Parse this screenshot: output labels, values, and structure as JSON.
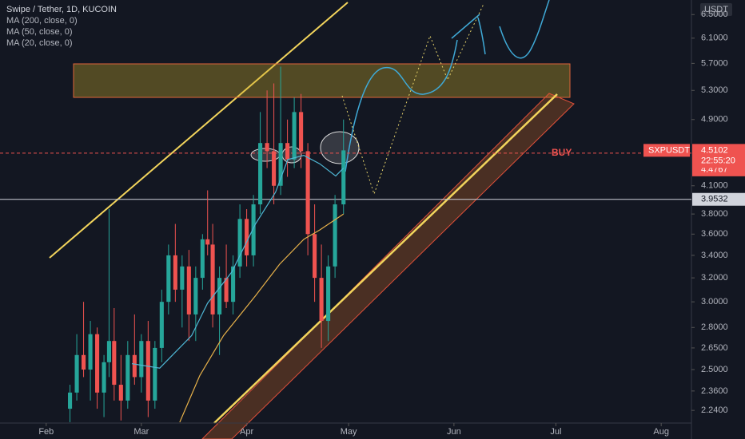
{
  "header": {
    "symbol": "Swipe / Tether, 1D, KUCOIN",
    "indicators": [
      "MA (200, close, 0)",
      "MA (50, close, 0)",
      "MA (20, close, 0)"
    ]
  },
  "chart_data": {
    "type": "candlestick",
    "currency": "USDT",
    "log_scale": true,
    "up_color": "#26a69a",
    "down_color": "#ef5350",
    "xlim": [
      18.4,
      221.9
    ],
    "xticks": [
      {
        "value": 32,
        "label": "Feb"
      },
      {
        "value": 60,
        "label": "Mar"
      },
      {
        "value": 91,
        "label": "Apr"
      },
      {
        "value": 121,
        "label": "May"
      },
      {
        "value": 152,
        "label": "Jun"
      },
      {
        "value": 182,
        "label": "Jul"
      },
      {
        "value": 213,
        "label": "Aug"
      }
    ],
    "ylim": [
      2.165,
      6.76
    ],
    "yticks": [
      {
        "value": 6.5,
        "label": "6.5000"
      },
      {
        "value": 6.1,
        "label": "6.1000"
      },
      {
        "value": 5.7,
        "label": "5.7000"
      },
      {
        "value": 5.3,
        "label": "5.3000"
      },
      {
        "value": 4.9,
        "label": "4.9000"
      },
      {
        "value": 4.1,
        "label": "4.1000"
      },
      {
        "value": 3.8,
        "label": "3.8000"
      },
      {
        "value": 3.6,
        "label": "3.6000"
      },
      {
        "value": 3.4,
        "label": "3.4000"
      },
      {
        "value": 3.2,
        "label": "3.2000"
      },
      {
        "value": 3,
        "label": "3.0000"
      },
      {
        "value": 2.8,
        "label": "2.8000"
      },
      {
        "value": 2.65,
        "label": "2.6500"
      },
      {
        "value": 2.5,
        "label": "2.5000"
      },
      {
        "value": 2.36,
        "label": "2.3600"
      },
      {
        "value": 2.24,
        "label": "2.2400"
      }
    ],
    "candles": [
      [
        39,
        2.25,
        2.4,
        2.17,
        2.35
      ],
      [
        41,
        2.35,
        2.75,
        2.3,
        2.6
      ],
      [
        43,
        2.6,
        3,
        2.45,
        2.5
      ],
      [
        45,
        2.5,
        2.85,
        2.3,
        2.75
      ],
      [
        47,
        2.75,
        2.8,
        2.25,
        2.35
      ],
      [
        49,
        2.35,
        2.6,
        2.2,
        2.55
      ],
      [
        50.5,
        2.55,
        3.85,
        2.45,
        2.7
      ],
      [
        52,
        2.7,
        2.95,
        2.3,
        2.4
      ],
      [
        54,
        2.4,
        2.6,
        2.18,
        2.3
      ],
      [
        56,
        2.3,
        2.7,
        2.25,
        2.6
      ],
      [
        58,
        2.6,
        2.9,
        2.4,
        2.45
      ],
      [
        60,
        2.45,
        2.75,
        2.35,
        2.7
      ],
      [
        62,
        2.7,
        2.85,
        2.2,
        2.3
      ],
      [
        64,
        2.3,
        2.7,
        2.25,
        2.65
      ],
      [
        66,
        2.65,
        3.1,
        2.55,
        3
      ],
      [
        68,
        3,
        3.5,
        2.9,
        3.4
      ],
      [
        70,
        3.4,
        3.7,
        3,
        3.1
      ],
      [
        72,
        3.1,
        3.4,
        2.8,
        3.3
      ],
      [
        74,
        3.3,
        3.45,
        2.7,
        2.9
      ],
      [
        76,
        2.9,
        3.3,
        2.7,
        3.2
      ],
      [
        78,
        3.2,
        3.6,
        3.1,
        3.55
      ],
      [
        79.5,
        3.55,
        4.05,
        3.4,
        3.5
      ],
      [
        81,
        3.5,
        3.7,
        2.8,
        2.9
      ],
      [
        83,
        2.9,
        3.3,
        2.6,
        3.2
      ],
      [
        85,
        3.2,
        3.5,
        2.95,
        3
      ],
      [
        87,
        3,
        3.4,
        2.9,
        3.3
      ],
      [
        89,
        3.3,
        3.9,
        3.2,
        3.75
      ],
      [
        91,
        3.75,
        3.85,
        3.3,
        3.4
      ],
      [
        93,
        3.4,
        4,
        3.3,
        3.9
      ],
      [
        95,
        3.9,
        5,
        3.8,
        4.6
      ],
      [
        97,
        4.6,
        5.3,
        4.3,
        4.5
      ],
      [
        99,
        4.5,
        5.4,
        3.9,
        4.1
      ],
      [
        101,
        4.1,
        5.65,
        4,
        4.6
      ],
      [
        103,
        4.6,
        4.9,
        4.2,
        4.4
      ],
      [
        105,
        4.4,
        5.2,
        4.3,
        5
      ],
      [
        107,
        5,
        5.25,
        4.3,
        4.5
      ],
      [
        109,
        4.5,
        4.6,
        3.4,
        3.6
      ],
      [
        111,
        3.6,
        3.9,
        3,
        3.2
      ],
      [
        113,
        3.2,
        3.5,
        2.65,
        2.85
      ],
      [
        115,
        2.85,
        3.4,
        2.7,
        3.3
      ],
      [
        117,
        3.3,
        4,
        3.2,
        3.9
      ],
      [
        119.5,
        3.9,
        4.9,
        3.8,
        4.51
      ]
    ],
    "series": [
      {
        "name": "MA (20, close, 0)",
        "color": "#4fb8d6",
        "x": [
          57.2,
          65.4,
          74.8,
          79.5,
          86.6,
          93.6,
          99.5,
          103.1,
          107.8,
          112.5,
          117.2,
          119.5
        ],
        "values": [
          2.54,
          2.51,
          2.74,
          2.99,
          3.25,
          3.7,
          4.03,
          4.4,
          4.45,
          4.35,
          4.21,
          4.3
        ]
      },
      {
        "name": "MA (50, close, 0)",
        "color": "#e8b24a",
        "x": [
          71.3,
          77.2,
          84.2,
          93.6,
          100.7,
          107.8,
          112.5,
          119.5
        ],
        "values": [
          2.17,
          2.46,
          2.74,
          3.05,
          3.32,
          3.55,
          3.64,
          3.8
        ]
      }
    ],
    "current_price": {
      "symbol": "SXPUSDT",
      "value": 4.5102,
      "countdown": "22:55:20"
    },
    "buy_line": {
      "value": 4.4767,
      "annotation": "BUY"
    },
    "horizontal_line": {
      "value": 3.9532
    }
  }
}
